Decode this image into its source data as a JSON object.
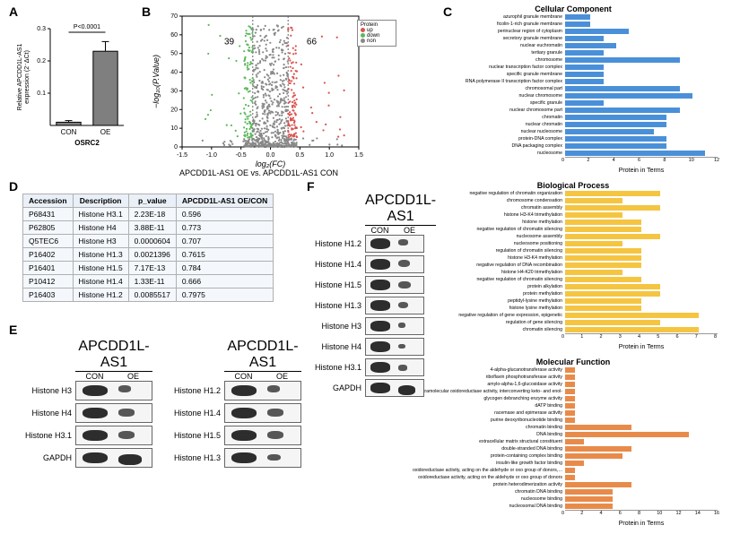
{
  "labels": {
    "A": "A",
    "B": "B",
    "C": "C",
    "D": "D",
    "E": "E",
    "F": "F"
  },
  "panelA": {
    "ylabel": "Relative APCDD1L-AS1\nexpression (2^-ΔCt)",
    "xlabel": "OSRC2",
    "cats": [
      "CON",
      "OE"
    ],
    "values": [
      0.01,
      0.23
    ],
    "err": [
      0.005,
      0.03
    ],
    "ylim": [
      0,
      0.3
    ],
    "yticks": [
      0.1,
      0.2,
      0.3
    ],
    "bar_color": "#7f7f7f",
    "pvalue": "P<0.0001"
  },
  "panelB": {
    "xlabel": "log₂(FC)",
    "ylabel": "−log₁₀(P.Value)",
    "caption": "APCDD1L-AS1 OE vs. APCDD1L-AS1 CON",
    "xlim": [
      -1.5,
      1.5
    ],
    "xticks": [
      -1.5,
      -1.0,
      -0.5,
      0.0,
      0.5,
      1.0,
      1.5
    ],
    "ylim": [
      0,
      70
    ],
    "yticks": [
      0,
      10,
      20,
      30,
      40,
      50,
      60,
      70
    ],
    "thresh_lines": [
      -0.3,
      0.3
    ],
    "counts": {
      "down": 39,
      "up": 66
    },
    "colors": {
      "up": "#d9534f",
      "down": "#5cb85c",
      "non": "#888888"
    },
    "legend": {
      "title": "Protein",
      "items": [
        "up",
        "down",
        "non"
      ]
    }
  },
  "panelC": {
    "charts": [
      {
        "title": "Cellular Component",
        "color": "#4a90d9",
        "xmax": 12,
        "xticks": [
          0,
          2,
          4,
          6,
          8,
          10,
          12
        ],
        "xaxis": "Protein in Terms",
        "items": [
          {
            "label": "azurophil granule membrane",
            "v": 2
          },
          {
            "label": "ficolin-1-rich granule membrane",
            "v": 2
          },
          {
            "label": "perinuclear region of cytoplasm",
            "v": 5
          },
          {
            "label": "secretory granule membrane",
            "v": 3
          },
          {
            "label": "nuclear euchromatin",
            "v": 4
          },
          {
            "label": "tertiary granule",
            "v": 3
          },
          {
            "label": "chromosome",
            "v": 9
          },
          {
            "label": "nuclear transcription factor complex",
            "v": 3
          },
          {
            "label": "specific granule membrane",
            "v": 3
          },
          {
            "label": "RNA polymerase II transcription factor complex",
            "v": 3
          },
          {
            "label": "chromosomal part",
            "v": 9
          },
          {
            "label": "nuclear chromosome",
            "v": 10
          },
          {
            "label": "specific granule",
            "v": 3
          },
          {
            "label": "nuclear chromosome part",
            "v": 9
          },
          {
            "label": "chromatin",
            "v": 8
          },
          {
            "label": "nuclear chromatin",
            "v": 8
          },
          {
            "label": "nuclear nucleosome",
            "v": 7
          },
          {
            "label": "protein-DNA complex",
            "v": 8
          },
          {
            "label": "DNA packaging complex",
            "v": 8
          },
          {
            "label": "nucleosome",
            "v": 11
          }
        ]
      },
      {
        "title": "Biological Process",
        "color": "#f5c542",
        "xmax": 8,
        "xticks": [
          0,
          1,
          2,
          3,
          4,
          5,
          6,
          7,
          8
        ],
        "xaxis": "Protein in Terms",
        "items": [
          {
            "label": "negative regulation of chromatin organization",
            "v": 5
          },
          {
            "label": "chromosome condensation",
            "v": 3
          },
          {
            "label": "chromatin assembly",
            "v": 5
          },
          {
            "label": "histone H3-K4 trimethylation",
            "v": 3
          },
          {
            "label": "histone methylation",
            "v": 4
          },
          {
            "label": "negative regulation of chromatin silencing",
            "v": 4
          },
          {
            "label": "nucleosome assembly",
            "v": 5
          },
          {
            "label": "nucleosome positioning",
            "v": 3
          },
          {
            "label": "regulation of chromatin silencing",
            "v": 4
          },
          {
            "label": "histone H3-K4 methylation",
            "v": 4
          },
          {
            "label": "negative regulation of DNA recombination",
            "v": 4
          },
          {
            "label": "histone H4-K20 trimethylation",
            "v": 3
          },
          {
            "label": "negative regulation of chromatin silencing",
            "v": 4
          },
          {
            "label": "protein alkylation",
            "v": 5
          },
          {
            "label": "protein methylation",
            "v": 5
          },
          {
            "label": "peptidyl-lysine methylation",
            "v": 4
          },
          {
            "label": "histone lysine methylation",
            "v": 4
          },
          {
            "label": "negative regulation of gene expression, epigenetic",
            "v": 7
          },
          {
            "label": "regulation of gene silencing",
            "v": 5
          },
          {
            "label": "chromatin silencing",
            "v": 7
          }
        ]
      },
      {
        "title": "Molecular Function",
        "color": "#e88b4a",
        "xmax": 16,
        "xticks": [
          0,
          2,
          4,
          6,
          8,
          10,
          12,
          14,
          16
        ],
        "xaxis": "Protein in Terms",
        "items": [
          {
            "label": "4-alpha-glucanotransferase activity",
            "v": 1
          },
          {
            "label": "riboflavin phosphotransferase activity",
            "v": 1
          },
          {
            "label": "amylo-alpha-1,6-glucosidase activity",
            "v": 1
          },
          {
            "label": "intramolecular oxidoreductase activity, interconverting keto- and enol-",
            "v": 1
          },
          {
            "label": "glycogen debranching enzyme activity",
            "v": 1
          },
          {
            "label": "dATP binding",
            "v": 1
          },
          {
            "label": "racemase and epimerase activity",
            "v": 1
          },
          {
            "label": "purine deoxyribonucleotide binding",
            "v": 1
          },
          {
            "label": "chromatin binding",
            "v": 7
          },
          {
            "label": "DNA binding",
            "v": 13
          },
          {
            "label": "extracellular matrix structural constituent",
            "v": 2
          },
          {
            "label": "double-stranded DNA binding",
            "v": 7
          },
          {
            "label": "protein-containing complex binding",
            "v": 6
          },
          {
            "label": "insulin-like growth factor binding",
            "v": 2
          },
          {
            "label": "oxidoreductase activity, acting on the aldehyde or oxo group of donors,…",
            "v": 1
          },
          {
            "label": "oxidoreductase activity, acting on the aldehyde or oxo group of donors",
            "v": 1
          },
          {
            "label": "protein heterodimerization activity",
            "v": 7
          },
          {
            "label": "chromatin DNA binding",
            "v": 5
          },
          {
            "label": "nucleosome binding",
            "v": 5
          },
          {
            "label": "nucleosomal DNA binding",
            "v": 5
          }
        ]
      }
    ]
  },
  "panelD": {
    "headers": [
      "Accession",
      "Description",
      "p_value",
      "APCDD1L-AS1 OE/CON"
    ],
    "rows": [
      [
        "P68431",
        "Histone H3.1",
        "2.23E-18",
        "0.596"
      ],
      [
        "P62805",
        "Histone H4",
        "3.88E-11",
        "0.773"
      ],
      [
        "Q5TEC6",
        "Histone H3",
        "0.0000604",
        "0.707"
      ],
      [
        "P16402",
        "Histone H1.3",
        "0.0021396",
        "0.7615"
      ],
      [
        "P16401",
        "Histone H1.5",
        "7.17E-13",
        "0.784"
      ],
      [
        "P10412",
        "Histone H1.4",
        "1.33E-11",
        "0.666"
      ],
      [
        "P16403",
        "Histone H1.2",
        "0.0085517",
        "0.7975"
      ]
    ]
  },
  "panelE": {
    "title": "APCDD1L-AS1",
    "cols": [
      "CON",
      "OE"
    ],
    "set1": [
      "Histone H3",
      "Histone H4",
      "Histone H3.1",
      "GAPDH"
    ],
    "set2": [
      "Histone H1.2",
      "Histone H1.4",
      "Histone H1.5",
      "Histone H1.3"
    ]
  },
  "panelF": {
    "title": "APCDD1L-AS1",
    "cols": [
      "CON",
      "OE"
    ],
    "rows": [
      "Histone H1.2",
      "Histone H1.4",
      "Histone H1.5",
      "Histone H1.3",
      "Histone H3",
      "Histone H4",
      "Histone H3.1",
      "GAPDH"
    ]
  }
}
